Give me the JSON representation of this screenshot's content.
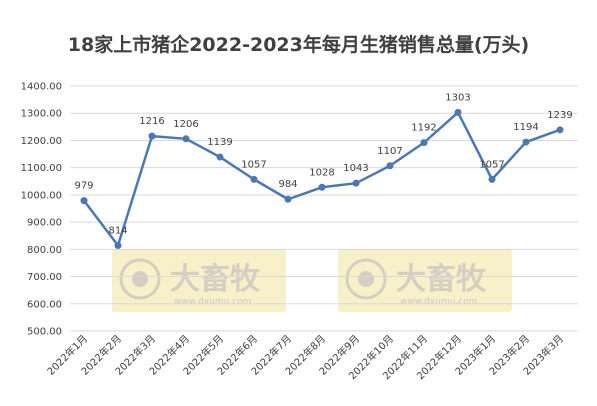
{
  "watermark": {
    "brand": "大畜牧",
    "site": "www.dxumu.com"
  },
  "chart_data": {
    "type": "line",
    "title": "18家上市猪企2022-2023年每月生猪销售总量(万头)",
    "categories": [
      "2022年1月",
      "2022年2月",
      "2022年3月",
      "2022年4月",
      "2022年5月",
      "2022年6月",
      "2022年7月",
      "2022年8月",
      "2022年9月",
      "2022年10月",
      "2022年11月",
      "2022年12月",
      "2023年1月",
      "2023年2月",
      "2023年3月"
    ],
    "series": [
      {
        "values": [
          979,
          814,
          1216,
          1206,
          1139,
          1057,
          984,
          1028,
          1043,
          1107,
          1192,
          1303,
          1057,
          1194,
          1239
        ],
        "color": "#4a78b3"
      }
    ],
    "y_ticks": [
      "500.00",
      "600.00",
      "700.00",
      "800.00",
      "900.00",
      "1000.00",
      "1100.00",
      "1200.00",
      "1300.00",
      "1400.00"
    ],
    "ylim": [
      500,
      1400
    ],
    "grid": true,
    "legend": "none"
  }
}
